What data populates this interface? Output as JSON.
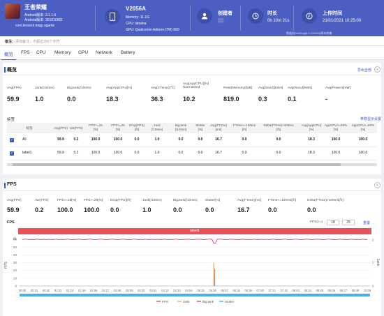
{
  "header": {
    "app_name": "王者荣耀",
    "android_ver": "Android版本: 3.1.1.6",
    "android_ver2": "Android版本: 301010601",
    "package": "com.tencent.tmgp.sgame",
    "device_name": "V2056A",
    "memory": "Memory: 11.1G",
    "cpu": "CPU: lahaina",
    "gpu": "GPU: Qualcomm Adreno (TM) 660",
    "creator_label": "创建者",
    "creator_value": "▒▒",
    "duration_label": "时长",
    "duration_value": "0h 10m 21s",
    "upload_label": "上传时间",
    "upload_value": "21/01/2021 10:25:00",
    "perfdog_version": "数据由PerfDog(5.0.210104)版本收集"
  },
  "note": {
    "label": "备注:",
    "placeholder": "添加备注，不超过200个字符"
  },
  "tabs": [
    "概览",
    "FPS",
    "CPU",
    "Memory",
    "GPU",
    "Network",
    "Battery"
  ],
  "overview": {
    "title": "概览",
    "export": "导出全部",
    "metrics": [
      {
        "label": "Avg(FPS)",
        "value": "59.9"
      },
      {
        "label": "Jank(/10min)",
        "value": "1.0"
      },
      {
        "label": "BigJank(/10min)",
        "value": "0.0"
      },
      {
        "label": "Avg(AppCPU)[%]",
        "value": "18.3"
      },
      {
        "label": "Avg(CTemp)[℃]",
        "value": "36.3"
      },
      {
        "label": "Avg(AppCPU)[%]\nNormalized",
        "value": "10.2"
      },
      {
        "label": "Peak(Memory)[MB]",
        "value": "819.0"
      },
      {
        "label": "Avg(Send)[KB/s]",
        "value": "0.3"
      },
      {
        "label": "Avg(Recv)[KB/s]",
        "value": "0.1"
      },
      {
        "label": "Avg(Power)[mW]",
        "value": "-"
      }
    ],
    "labels_title": "标签",
    "labels_settings": "参数显示设置",
    "table_headers": [
      "标签",
      "Avg(FPS)",
      "Var(FPS)",
      "FPS>=18\n[%]",
      "FPS>=25\n[%]",
      "Drop(FPS)\n[/h]",
      "Jank\n(/10min)",
      "BigJank\n(/10min)",
      "Stutter\n[%]",
      "Avg(FTime)\n[ms]",
      "FTime>=100ms\n[/h]",
      "Delta(FTime)>100ms\n[/h]",
      "Avg(AppCPU)\n[%]",
      "AppCPU>=60%\n[%]",
      "AppCPU>=80%\n[%]"
    ],
    "rows": [
      {
        "label": "All",
        "values": [
          "59.9",
          "0.2",
          "100.0",
          "100.0",
          "0.0",
          "1.0",
          "0.0",
          "0.0",
          "16.7",
          "0.0",
          "0.0",
          "18.3",
          "100.0",
          "100.0"
        ]
      },
      {
        "label": "label1",
        "values": [
          "59.9",
          "0.2",
          "100.0",
          "100.0",
          "0.0",
          "1.0",
          "0.0",
          "0.0",
          "16.7",
          "0.0",
          "0.0",
          "18.3",
          "100.0",
          "100.0"
        ]
      }
    ]
  },
  "fps": {
    "title": "FPS",
    "metrics": [
      {
        "label": "Avg(FPS)",
        "value": "59.9"
      },
      {
        "label": "Var(FPS)",
        "value": "0.2"
      },
      {
        "label": "FPS>=18[%]",
        "value": "100.0"
      },
      {
        "label": "FPS>=25[%]",
        "value": "100.0"
      },
      {
        "label": "Drop(FPS)[/h]",
        "value": "0.0"
      },
      {
        "label": "Jank(/10min)",
        "value": "1.0"
      },
      {
        "label": "BigJank(/10min)",
        "value": "0.0"
      },
      {
        "label": "Stutter[%]",
        "value": "0.0"
      },
      {
        "label": "Avg(FTime)[ms]",
        "value": "16.7"
      },
      {
        "label": "FTime>=100ms[/h]",
        "value": "0.0"
      },
      {
        "label": "Delta(FTime)>100ms[/h]",
        "value": "0.0"
      }
    ],
    "filter_label": "FPS(>=)",
    "filter_a": "18",
    "filter_b": "25",
    "reset": "重置",
    "chart_title": "FPS",
    "bar_label": "label1"
  },
  "chart_data": {
    "type": "line",
    "title": "FPS",
    "ylabel": "FPS",
    "ylabel_right": "Jank",
    "y_ticks": [
      "61",
      "60",
      "50",
      "40",
      "30",
      "20",
      "10",
      "0"
    ],
    "y_right_ticks": [
      "2",
      "1",
      "0"
    ],
    "x_ticks": [
      "00:00",
      "00:21",
      "00:42",
      "01:03",
      "01:24",
      "01:45",
      "02:06",
      "02:27",
      "02:48",
      "03:09",
      "03:30",
      "03:51",
      "04:12",
      "04:33",
      "04:54",
      "05:15",
      "05:36",
      "05:57",
      "06:18",
      "06:39",
      "07:00",
      "07:21",
      "07:42",
      "08:03",
      "08:24",
      "08:45",
      "09:06",
      "09:27",
      "09:48",
      "10:09"
    ],
    "series": [
      {
        "name": "FPS",
        "color": "#d6338a",
        "baseline": 60,
        "dips": [
          {
            "t": "05:40",
            "value": 55
          }
        ]
      },
      {
        "name": "Jank",
        "color": "#f0a060",
        "spikes": [
          {
            "t": "05:38",
            "value": 1
          }
        ]
      },
      {
        "name": "BigJank",
        "color": "#e03c3c",
        "spikes": []
      },
      {
        "name": "Stutter",
        "color": "#4a90e2",
        "spikes": [
          {
            "t": "05:38",
            "value": 0
          }
        ]
      }
    ]
  }
}
